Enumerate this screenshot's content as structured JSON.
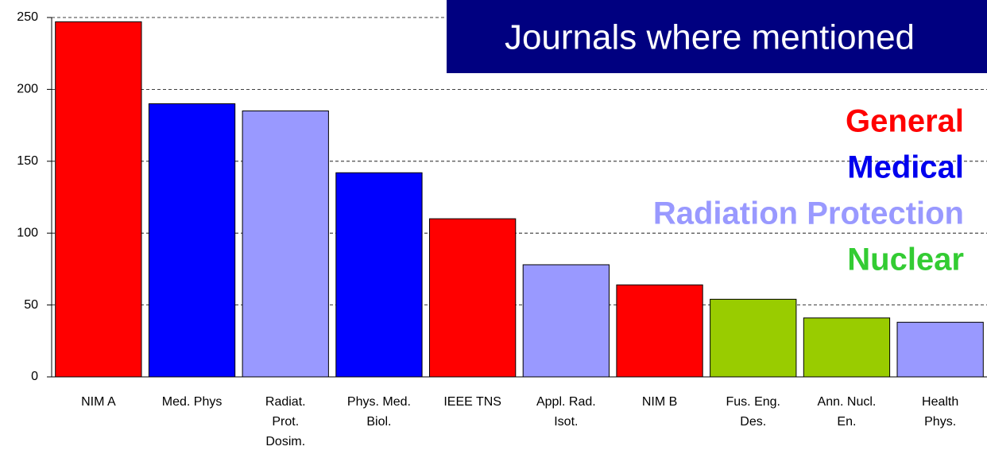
{
  "chart_data": {
    "type": "bar",
    "title": "Journals where mentioned",
    "categories": [
      "NIM A",
      "Med. Phys",
      "Radiat. Prot. Dosim.",
      "Phys. Med. Biol.",
      "IEEE TNS",
      "Appl. Rad. Isot.",
      "NIM B",
      "Fus. Eng. Des.",
      "Ann. Nucl. En.",
      "Health Phys."
    ],
    "values": [
      247,
      190,
      185,
      142,
      110,
      78,
      64,
      54,
      41,
      38
    ],
    "colors": [
      "#ff0000",
      "#0000ff",
      "#9999ff",
      "#0000ff",
      "#ff0000",
      "#9999ff",
      "#ff0000",
      "#99cc00",
      "#99cc00",
      "#9999ff"
    ],
    "legend": [
      {
        "name": "General",
        "color": "#ff0000"
      },
      {
        "name": "Medical",
        "color": "#0000ee"
      },
      {
        "name": "Radiation Protection",
        "color": "#9999ff"
      },
      {
        "name": "Nuclear",
        "color": "#33cc33"
      }
    ],
    "ylim": [
      0,
      250
    ],
    "yticks": [
      0,
      50,
      100,
      150,
      200,
      250
    ],
    "grid": true
  }
}
